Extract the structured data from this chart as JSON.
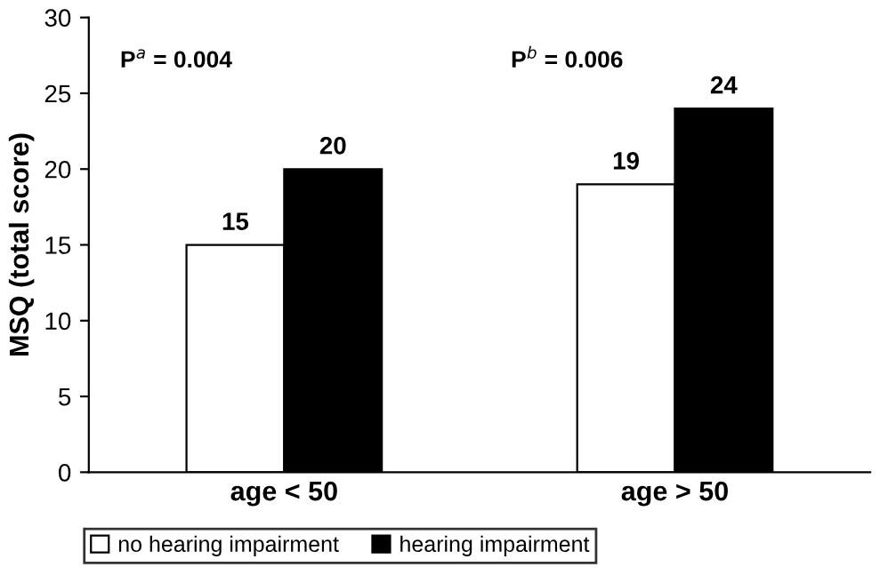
{
  "chart_data": {
    "type": "bar",
    "categories": [
      "age < 50",
      "age > 50"
    ],
    "series": [
      {
        "name": "no hearing impairment",
        "color": "#ffffff",
        "values": [
          15,
          19
        ]
      },
      {
        "name": "hearing impairment",
        "color": "#000000",
        "values": [
          20,
          24
        ]
      }
    ],
    "ylabel": "MSQ (total score)",
    "ylim": [
      0,
      30
    ],
    "yticks": [
      0,
      5,
      10,
      15,
      20,
      25,
      30
    ],
    "annotations": [
      "P$^{a}$ = 0.004",
      "P$^{b}$ = 0.006"
    ],
    "data_labels": true,
    "grid": false,
    "legend": "bottom"
  }
}
